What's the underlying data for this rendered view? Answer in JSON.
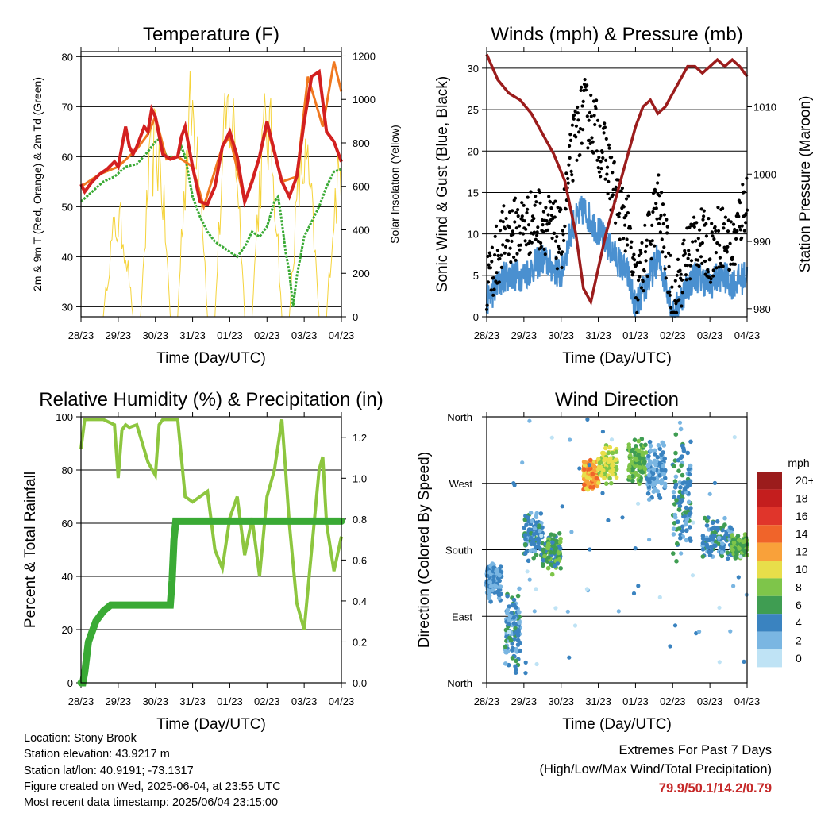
{
  "x_ticks": [
    "28/23",
    "29/23",
    "30/23",
    "31/23",
    "01/23",
    "02/23",
    "03/23",
    "04/23"
  ],
  "panels": {
    "temperature": {
      "title": "Temperature (F)",
      "xlabel": "Time (Day/UTC)",
      "ylabel_left": "2m & 9m T (Red, Orange) & 2m Td (Green)",
      "ylabel_right": "Solar Insolation (Yellow)"
    },
    "winds": {
      "title": "Winds (mph) & Pressure (mb)",
      "xlabel": "Time (Day/UTC)",
      "ylabel_left": "Sonic Wind & Gust (Blue, Black)",
      "ylabel_right": "Station Pressure (Maroon)"
    },
    "humidity": {
      "title": "Relative Humidity (%) & Precipitation (in)",
      "xlabel": "Time (Day/UTC)",
      "ylabel_left": "Percent & Total Rainfall"
    },
    "direction": {
      "title": "Wind Direction",
      "xlabel": "Time (Day/UTC)",
      "ylabel_left": "Direction (Colored By Speed)",
      "legend_title": "mph",
      "legend_labels": [
        "20+",
        "18",
        "16",
        "14",
        "12",
        "10",
        "8",
        "6",
        "4",
        "2",
        "0"
      ]
    }
  },
  "colors": {
    "temp_2m": "#d32020",
    "temp_9m": "#f07820",
    "dewpoint": "#3aaa35",
    "solar": "#f5d33a",
    "wind": "#4a90d0",
    "gust": "#000000",
    "pressure": "#9b1c1c",
    "rh": "#8dc63f",
    "precip": "#3aaa35",
    "speed_scale": [
      "#9b1c1c",
      "#c41e1e",
      "#e0352b",
      "#f0642a",
      "#f9a13a",
      "#e8de4a",
      "#7ec54a",
      "#3f9d52",
      "#3a83c0",
      "#7ab6e2",
      "#bfe3f5"
    ]
  },
  "chart_data": [
    {
      "type": "line",
      "title": "Temperature (F)",
      "xlabel": "Time (Day/UTC)",
      "ylabel": "2m & 9m T (Red, Orange) & 2m Td (Green)",
      "y2label": "Solar Insolation (Yellow)",
      "ylim": [
        28,
        81
      ],
      "y2lim": [
        0,
        1220
      ],
      "yticks": [
        30,
        40,
        50,
        60,
        70,
        80
      ],
      "y2ticks": [
        0,
        200,
        400,
        600,
        800,
        1000,
        1200
      ],
      "grid": true,
      "series": [
        {
          "name": "2m T",
          "axis": "left",
          "x": [
            0,
            0.1,
            0.3,
            0.5,
            0.7,
            0.9,
            1.0,
            1.1,
            1.2,
            1.3,
            1.4,
            1.5,
            1.6,
            1.7,
            1.8,
            1.9,
            2.0,
            2.2,
            2.4,
            2.6,
            2.7,
            2.8,
            2.9,
            3.0,
            3.2,
            3.4,
            3.6,
            3.8,
            4.0,
            4.2,
            4.4,
            4.6,
            4.8,
            5.0,
            5.2,
            5.4,
            5.6,
            5.8,
            6.0,
            6.2,
            6.4,
            6.6,
            6.8,
            7.0
          ],
          "y": [
            54.5,
            53,
            55,
            56.5,
            57.5,
            59,
            58,
            62,
            66,
            62,
            60.5,
            62,
            64,
            66,
            65,
            69.5,
            68,
            60.5,
            59.5,
            60,
            64,
            66,
            62,
            58,
            51,
            50.5,
            54,
            62,
            65,
            60,
            51,
            55,
            60,
            67,
            61,
            55,
            52,
            56,
            67,
            76,
            77,
            65,
            63,
            59
          ]
        },
        {
          "name": "9m T",
          "axis": "left",
          "x": [
            0,
            0.5,
            1.0,
            1.5,
            1.8,
            2.0,
            2.3,
            2.6,
            3.0,
            3.3,
            3.8,
            4.0,
            4.4,
            4.8,
            5.0,
            5.4,
            5.8,
            6.1,
            6.5,
            6.8,
            7.0
          ],
          "y": [
            54,
            56.5,
            58,
            61.5,
            64.5,
            68,
            59.5,
            60,
            58,
            50,
            62,
            64,
            51,
            60,
            66,
            55,
            56,
            76,
            66,
            79,
            73
          ]
        },
        {
          "name": "2m Td",
          "axis": "left",
          "x": [
            0,
            0.3,
            0.6,
            0.9,
            1.2,
            1.5,
            1.8,
            2.0,
            2.1,
            2.2,
            2.3,
            2.4,
            2.6,
            2.7,
            2.8,
            2.9,
            3.0,
            3.2,
            3.4,
            3.6,
            3.8,
            4.0,
            4.2,
            4.4,
            4.6,
            4.8,
            5.0,
            5.2,
            5.3,
            5.4,
            5.5,
            5.6,
            5.7,
            5.8,
            6.0,
            6.2,
            6.4,
            6.6,
            6.8,
            7.0
          ],
          "y": [
            51,
            53,
            55,
            56,
            58,
            58.5,
            61,
            63,
            63.5,
            62,
            60,
            60,
            60,
            62,
            60,
            56,
            52,
            48,
            45,
            43,
            42,
            41,
            40,
            42,
            45,
            44,
            46,
            51,
            52,
            47,
            41,
            37,
            30,
            36,
            44,
            47,
            50,
            54,
            57,
            57.5
          ]
        },
        {
          "name": "Solar Insolation",
          "axis": "right",
          "values_note": "diurnal peaks",
          "x": [
            0.6,
            1.0,
            1.6,
            2.0,
            2.6,
            3.0,
            3.6,
            4.0,
            4.6,
            5.0,
            5.6,
            6.0,
            6.6,
            7.0
          ],
          "y": [
            0,
            550,
            0,
            1000,
            0,
            1200,
            0,
            1200,
            0,
            1100,
            0,
            900,
            0,
            850
          ]
        }
      ]
    },
    {
      "type": "line",
      "title": "Winds (mph) & Pressure (mb)",
      "xlabel": "Time (Day/UTC)",
      "ylabel": "Sonic Wind & Gust (Blue, Black)",
      "y2label": "Station Pressure (Maroon)",
      "ylim": [
        0,
        32
      ],
      "y2lim": [
        978.8,
        1018.2
      ],
      "yticks": [
        0,
        5,
        10,
        15,
        20,
        25,
        30
      ],
      "y2ticks": [
        980,
        990,
        1000,
        1010
      ],
      "grid": true,
      "series": [
        {
          "name": "Station Pressure",
          "axis": "right",
          "x": [
            0,
            0.3,
            0.6,
            0.9,
            1.2,
            1.5,
            1.8,
            2.1,
            2.4,
            2.6,
            2.8,
            3.0,
            3.2,
            3.4,
            3.6,
            3.8,
            4.0,
            4.2,
            4.4,
            4.6,
            4.8,
            5.0,
            5.2,
            5.4,
            5.6,
            5.8,
            6.0,
            6.2,
            6.4,
            6.6,
            6.8,
            7.0
          ],
          "y": [
            1017.8,
            1014,
            1012,
            1011,
            1009,
            1006,
            1003,
            999,
            991,
            983,
            981,
            986,
            991,
            995,
            999,
            1003,
            1007,
            1010,
            1011,
            1009,
            1010,
            1012,
            1014,
            1016,
            1016,
            1015,
            1016,
            1017,
            1016,
            1017,
            1016,
            1014.5
          ]
        },
        {
          "name": "Sonic Wind",
          "axis": "left",
          "x": [
            0,
            0.5,
            1.0,
            1.5,
            2.0,
            2.3,
            2.6,
            2.9,
            3.2,
            3.5,
            3.8,
            4.0,
            4.3,
            4.6,
            4.9,
            5.0,
            5.3,
            5.6,
            6.0,
            6.3,
            6.6,
            7.0
          ],
          "y": [
            2,
            5,
            5,
            7,
            5,
            11,
            13,
            11,
            9,
            7,
            5,
            1,
            4,
            7,
            3,
            0,
            3,
            5,
            4,
            5,
            4,
            5
          ]
        },
        {
          "name": "Gust",
          "axis": "left",
          "x": [
            0,
            0.5,
            1.0,
            1.5,
            2.0,
            2.3,
            2.6,
            2.9,
            3.2,
            3.5,
            3.8,
            4.0,
            4.3,
            4.6,
            4.9,
            5.0,
            5.3,
            5.6,
            6.0,
            6.3,
            6.6,
            7.0
          ],
          "y": [
            4,
            10,
            11,
            12,
            9,
            20,
            25,
            23,
            19,
            14,
            11,
            3,
            8,
            14,
            6,
            1,
            6,
            10,
            8,
            10,
            8,
            15
          ]
        }
      ]
    },
    {
      "type": "line",
      "title": "Relative Humidity (%) & Precipitation (in)",
      "xlabel": "Time (Day/UTC)",
      "ylabel": "Percent & Total Rainfall",
      "ylim": [
        0,
        100
      ],
      "y2lim": [
        0,
        1.3
      ],
      "yticks": [
        0,
        20,
        40,
        60,
        80,
        100
      ],
      "y2ticks": [
        0.0,
        0.2,
        0.4,
        0.6,
        0.8,
        1.0,
        1.2
      ],
      "grid": true,
      "series": [
        {
          "name": "Relative Humidity",
          "axis": "left",
          "x": [
            0,
            0.1,
            0.3,
            0.6,
            0.9,
            1.0,
            1.1,
            1.2,
            1.3,
            1.5,
            1.8,
            2.0,
            2.1,
            2.2,
            2.4,
            2.6,
            2.8,
            3.0,
            3.2,
            3.4,
            3.6,
            3.8,
            4.0,
            4.2,
            4.4,
            4.6,
            4.8,
            5.0,
            5.2,
            5.4,
            5.5,
            5.6,
            5.8,
            6.0,
            6.2,
            6.4,
            6.5,
            6.6,
            6.8,
            7.0
          ],
          "y": [
            88,
            99,
            99,
            99,
            97,
            77,
            95,
            97,
            96,
            97,
            83,
            78,
            97,
            99,
            99,
            99,
            70,
            68,
            70,
            72,
            50,
            43,
            62,
            70,
            48,
            62,
            40,
            70,
            80,
            99,
            80,
            60,
            30,
            20,
            50,
            80,
            85,
            60,
            42,
            55
          ]
        },
        {
          "name": "Total Precipitation",
          "axis": "right",
          "x": [
            0,
            0.05,
            0.1,
            0.2,
            0.4,
            0.6,
            0.8,
            1.0,
            1.5,
            2.0,
            2.4,
            2.45,
            2.5,
            2.55,
            7.0
          ],
          "y": [
            0,
            0,
            0.05,
            0.2,
            0.3,
            0.35,
            0.38,
            0.38,
            0.38,
            0.38,
            0.38,
            0.5,
            0.7,
            0.79,
            0.79
          ]
        }
      ]
    },
    {
      "type": "scatter",
      "title": "Wind Direction",
      "xlabel": "Time (Day/UTC)",
      "ylabel": "Direction (Colored By Speed)",
      "yticks": [
        "North",
        "East",
        "South",
        "West",
        "North"
      ],
      "ylim": [
        0,
        360
      ],
      "color_scale_label": "mph",
      "color_levels": [
        "20+",
        "18",
        "16",
        "14",
        "12",
        "10",
        "8",
        "6",
        "4",
        "2",
        "0"
      ],
      "grid": true,
      "clusters": [
        {
          "x": [
            0.0,
            0.4
          ],
          "dir": [
            110,
            160
          ],
          "speed": 3
        },
        {
          "x": [
            0.5,
            0.9
          ],
          "dir": [
            20,
            120
          ],
          "speed": 4
        },
        {
          "x": [
            1.0,
            1.5
          ],
          "dir": [
            170,
            230
          ],
          "speed": 4
        },
        {
          "x": [
            1.5,
            2.0
          ],
          "dir": [
            150,
            200
          ],
          "speed": 6
        },
        {
          "x": [
            2.6,
            3.0
          ],
          "dir": [
            260,
            300
          ],
          "speed": 12
        },
        {
          "x": [
            3.0,
            3.5
          ],
          "dir": [
            270,
            320
          ],
          "speed": 9
        },
        {
          "x": [
            3.8,
            4.3
          ],
          "dir": [
            270,
            330
          ],
          "speed": 7
        },
        {
          "x": [
            4.3,
            4.8
          ],
          "dir": [
            250,
            320
          ],
          "speed": 3
        },
        {
          "x": [
            5.0,
            5.5
          ],
          "dir": [
            170,
            340
          ],
          "speed": 4
        },
        {
          "x": [
            5.8,
            6.6
          ],
          "dir": [
            170,
            220
          ],
          "speed": 4
        },
        {
          "x": [
            6.6,
            7.0
          ],
          "dir": [
            170,
            200
          ],
          "speed": 7
        }
      ]
    }
  ],
  "station_info": [
    "Location: Stony Brook",
    "Station elevation: 43.9217 m",
    "Station lat/lon: 40.9191; -73.1317",
    "Figure created on Wed, 2025-06-04, at 23:55 UTC",
    "Most recent data timestamp: 2025/06/04 23:15:00"
  ],
  "extremes": {
    "line1": "Extremes For Past 7 Days",
    "line2": "(High/Low/Max Wind/Total Precipitation)",
    "values": "79.9/50.1/14.2/0.79"
  }
}
